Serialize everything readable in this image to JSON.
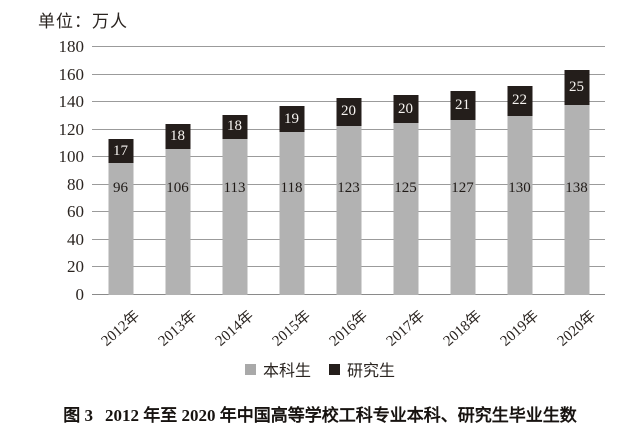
{
  "unit_label": "单位：万人",
  "colors": {
    "undergrad_bar": "#b2b2b2",
    "grad_bar": "#241e1b",
    "gridline": "#9b9b9b",
    "text": "#2a2420"
  },
  "legend": {
    "items": [
      {
        "label": "本科生",
        "color": "#b2b2b2"
      },
      {
        "label": "研究生",
        "color": "#241e1b"
      }
    ]
  },
  "caption": {
    "figure_label": "图 3",
    "text": "2012 年至 2020 年中国高等学校工科专业本科、研究生毕业生数"
  },
  "chart_data": {
    "type": "bar",
    "stacked": true,
    "title": "2012年至2020年中国高等学校工科专业本科、研究生毕业生数",
    "unit": "万人",
    "categories": [
      "2012年",
      "2013年",
      "2014年",
      "2015年",
      "2016年",
      "2017年",
      "2018年",
      "2019年",
      "2020年"
    ],
    "series": [
      {
        "name": "本科生",
        "color": "#b2b2b2",
        "values": [
          96,
          106,
          113,
          118,
          123,
          125,
          127,
          130,
          138
        ]
      },
      {
        "name": "研究生",
        "color": "#241e1b",
        "values": [
          17,
          18,
          18,
          19,
          20,
          20,
          21,
          22,
          25
        ]
      }
    ],
    "totals": [
      113,
      124,
      131,
      137,
      143,
      145,
      148,
      152,
      163
    ],
    "ylim": [
      0,
      180
    ],
    "yticks": [
      0,
      20,
      40,
      60,
      80,
      100,
      120,
      140,
      160,
      180
    ],
    "grid": true,
    "legend_position": "bottom"
  }
}
